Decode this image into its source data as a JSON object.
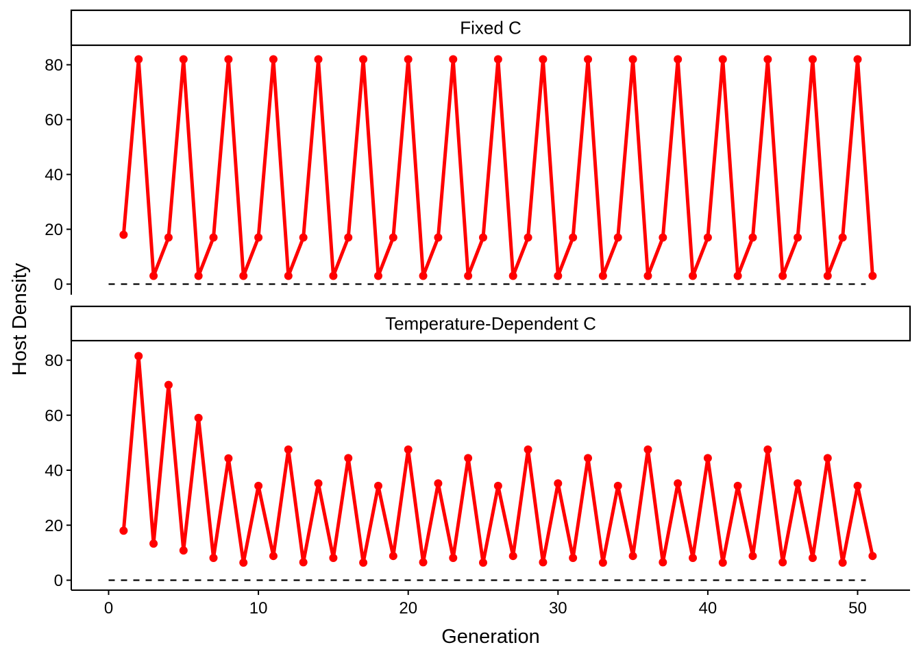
{
  "chart_data": {
    "type": "line",
    "xlabel": "Generation",
    "ylabel": "Host Density",
    "xlim": [
      1,
      51
    ],
    "ylim": [
      0,
      82
    ],
    "x_ticks": [
      0,
      10,
      20,
      30,
      40,
      50
    ],
    "y_ticks": [
      0,
      20,
      40,
      60,
      80
    ],
    "line_color": "#ff0000",
    "reference_line": {
      "y": 0,
      "style": "dashed",
      "color": "#000000",
      "x_range": [
        0,
        51
      ]
    },
    "grid": false,
    "legend": "none",
    "panels": [
      {
        "title": "Fixed C",
        "x": [
          1,
          2,
          3,
          4,
          5,
          6,
          7,
          8,
          9,
          10,
          11,
          12,
          13,
          14,
          15,
          16,
          17,
          18,
          19,
          20,
          21,
          22,
          23,
          24,
          25,
          26,
          27,
          28,
          29,
          30,
          31,
          32,
          33,
          34,
          35,
          36,
          37,
          38,
          39,
          40,
          41,
          42,
          43,
          44,
          45,
          46,
          47,
          48,
          49,
          50,
          51
        ],
        "values": [
          18,
          82,
          3,
          17,
          82,
          3,
          17,
          82,
          3,
          17,
          82,
          3,
          17,
          82,
          3,
          17,
          82,
          3,
          17,
          82,
          3,
          17,
          82,
          3,
          17,
          82,
          3,
          17,
          82,
          3,
          17,
          82,
          3,
          17,
          82,
          3,
          17,
          82,
          3,
          17,
          82,
          3,
          17,
          82,
          3,
          17,
          82,
          3,
          17,
          82,
          3
        ]
      },
      {
        "title": "Temperature-Dependent C",
        "x": [
          1,
          2,
          3,
          4,
          5,
          6,
          7,
          8,
          9,
          10,
          11,
          12,
          13,
          14,
          15,
          16,
          17,
          18,
          19,
          20,
          21,
          22,
          23,
          24,
          25,
          26,
          27,
          28,
          29,
          30,
          31,
          32,
          33,
          34,
          35,
          36,
          37,
          38,
          39,
          40,
          41,
          42,
          43,
          44,
          45,
          46,
          47,
          48,
          49,
          50,
          51
        ],
        "values": [
          18,
          81.5,
          13.3,
          71,
          10.8,
          59,
          8.1,
          44.3,
          6.4,
          34.3,
          8.8,
          47.5,
          6.5,
          35.2,
          8.1,
          44.4,
          6.4,
          34.3,
          8.8,
          47.5,
          6.5,
          35.2,
          8.1,
          44.4,
          6.4,
          34.3,
          8.8,
          47.5,
          6.5,
          35.2,
          8.1,
          44.4,
          6.4,
          34.3,
          8.8,
          47.5,
          6.5,
          35.2,
          8.1,
          44.4,
          6.4,
          34.3,
          8.8,
          47.5,
          6.5,
          35.2,
          8.1,
          44.4,
          6.4,
          34.3,
          8.8
        ]
      }
    ]
  }
}
